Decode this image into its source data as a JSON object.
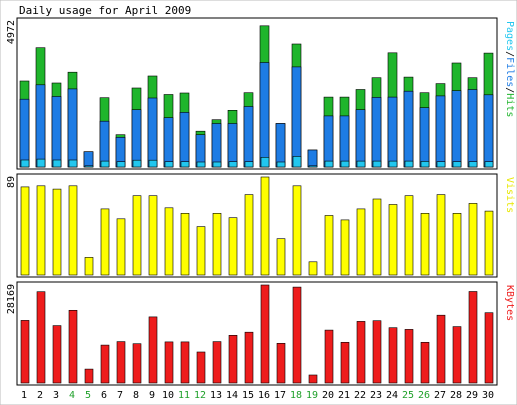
{
  "chart_data": {
    "type": "bar",
    "title": "Daily usage for April 2009",
    "categories": [
      "1",
      "2",
      "3",
      "4",
      "5",
      "6",
      "7",
      "8",
      "9",
      "10",
      "11",
      "12",
      "13",
      "14",
      "15",
      "16",
      "17",
      "18",
      "19",
      "20",
      "21",
      "22",
      "23",
      "24",
      "25",
      "26",
      "27",
      "28",
      "29",
      "30"
    ],
    "weekend_days": [
      "4",
      "5",
      "11",
      "12",
      "18",
      "19",
      "25",
      "26"
    ],
    "panels": [
      {
        "label_parts": [
          "Pages",
          "/",
          "Files",
          "/",
          "Hits"
        ],
        "ymax_label": "4972",
        "ylim": [
          0,
          4972
        ],
        "series": [
          {
            "name": "Hits",
            "color": "#1fb52c",
            "values": [
              2930,
              4063,
              2860,
              3230,
              520,
              2360,
              1100,
              2690,
              3100,
              2470,
              2520,
              1220,
              1610,
              1930,
              2530,
              4810,
              1480,
              4188,
              580,
              2380,
              2380,
              2640,
              3040,
              3890,
              3060,
              2530,
              2840,
              3540,
              3040,
              3880
            ]
          },
          {
            "name": "Files",
            "color": "#1e7ce4",
            "values": [
              2310,
              2800,
              2400,
              2660,
              520,
              1560,
              1010,
              1950,
              2350,
              1680,
              1860,
              1100,
              1480,
              1480,
              2060,
              3560,
              1480,
              3410,
              580,
              1740,
              1740,
              1950,
              2370,
              2380,
              2580,
              2020,
              2420,
              2600,
              2640,
              2460
            ]
          },
          {
            "name": "Pages",
            "color": "#22c7ef",
            "values": [
              240,
              270,
              240,
              240,
              40,
              200,
              180,
              230,
              230,
              180,
              180,
              170,
              170,
              180,
              180,
              330,
              170,
              360,
              40,
              200,
              200,
              200,
              200,
              200,
              200,
              190,
              180,
              180,
              180,
              180
            ]
          }
        ]
      },
      {
        "label_parts": [
          "Visits"
        ],
        "ymax_label": "89",
        "ylim": [
          0,
          89
        ],
        "series": [
          {
            "name": "Visits",
            "color": "#ffff00",
            "values": [
              80,
              81,
              78,
              81,
              16,
              60,
              51,
              72,
              72,
              61,
              56,
              44,
              56,
              52,
              73,
              89,
              33,
              81,
              12,
              54,
              50,
              60,
              69,
              64,
              72,
              56,
              73,
              56,
              65,
              58
            ]
          }
        ]
      },
      {
        "label_parts": [
          "KBytes"
        ],
        "ymax_label": "28169",
        "ylim": [
          0,
          28169
        ],
        "series": [
          {
            "name": "KBytes",
            "color": "#ee1c1c",
            "values": [
              18000,
              26250,
              16500,
              20900,
              4000,
              10900,
              11900,
              11300,
              19000,
              11800,
              11800,
              8900,
              11900,
              13700,
              14600,
              28169,
              11400,
              27570,
              2300,
              15200,
              11700,
              17700,
              17900,
              15900,
              15400,
              11700,
              19500,
              16200,
              26300,
              20200
            ]
          }
        ]
      }
    ]
  }
}
